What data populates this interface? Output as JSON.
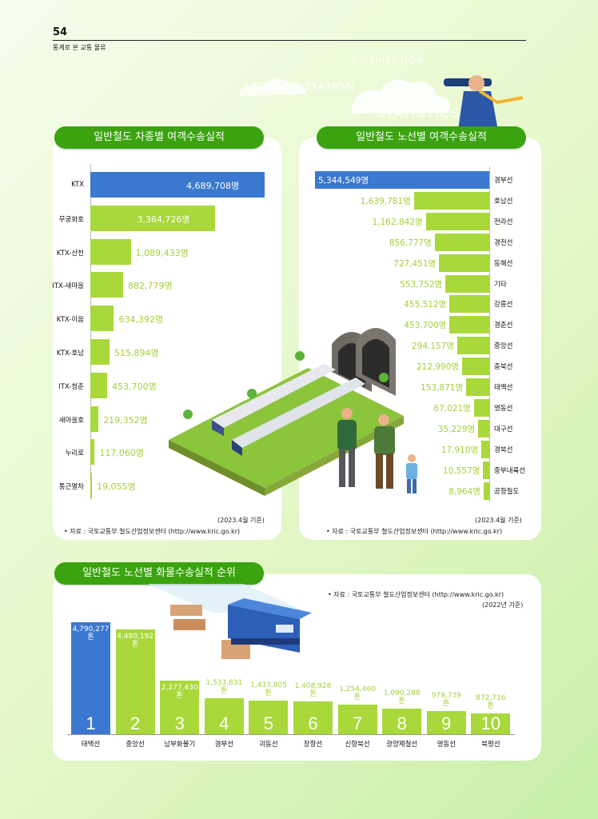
{
  "header": {
    "page_number": "54",
    "subtitle": "통계로 본 교통 물류",
    "deco_words": [
      "DISTRIBUTION",
      "TRANSPOTATION",
      "STATISTICS"
    ]
  },
  "colors": {
    "blue": "#3b78cf",
    "green": "#a8d83a",
    "green_text": "#a6cf3a",
    "pill": "#3aa30f"
  },
  "panel1": {
    "title": "일반철도 차종별 여객수송실적",
    "basis": "(2023.4월 기준)",
    "source": "• 자료 : 국토교통부 철도산업정보센터 (http://www.kric.go.kr)"
  },
  "panel2": {
    "title": "일반철도 노선별 여객수송실적",
    "basis": "(2023.4월 기준)",
    "source": "• 자료 : 국토교통부 철도산업정보센터 (http://www.kric.go.kr)"
  },
  "panel3": {
    "title": "일반철도 노선별 화물수송실적 순위",
    "source": "• 자료 : 국토교통부 철도산업정보센터 (http://www.kric.go.kr)",
    "basis": "(2022년 기준)"
  },
  "chart_data": [
    {
      "type": "bar",
      "orientation": "horizontal",
      "title": "일반철도 차종별 여객수송실적",
      "unit": "명",
      "categories": [
        "KTX",
        "무궁화호",
        "KTX-산천",
        "ITX-새마을",
        "KTX-이음",
        "KTX-호남",
        "ITX-청춘",
        "새마을호",
        "누리로",
        "통근열차"
      ],
      "values": [
        4689708,
        3364726,
        1089433,
        882779,
        634392,
        515894,
        453700,
        219352,
        117060,
        19055
      ],
      "value_labels": [
        "4,689,708",
        "3,364,726",
        "1,089,433",
        "882,779",
        "634,392",
        "515,894",
        "453,700",
        "219,352",
        "117,060",
        "19,055"
      ]
    },
    {
      "type": "bar",
      "orientation": "horizontal",
      "title": "일반철도 노선별 여객수송실적",
      "unit": "명",
      "categories": [
        "경부선",
        "호남선",
        "전라선",
        "경전선",
        "동해선",
        "기타",
        "강릉선",
        "경춘선",
        "중앙선",
        "충북선",
        "태백선",
        "영동선",
        "대구선",
        "경북선",
        "중부내륙선",
        "공항철도"
      ],
      "values": [
        5344549,
        1639781,
        1162842,
        856777,
        727451,
        553752,
        455512,
        453700,
        294157,
        212990,
        153871,
        67021,
        35229,
        17910,
        10557,
        8964
      ],
      "value_labels": [
        "5,344,549",
        "1,639,781",
        "1,162,842",
        "856,777",
        "727,451",
        "553,752",
        "455,512",
        "453,700",
        "294,157",
        "212,990",
        "153,871",
        "67,021",
        "35,229",
        "17,910",
        "10,557",
        "8,964"
      ]
    },
    {
      "type": "bar",
      "orientation": "vertical",
      "title": "일반철도 노선별 화물수송실적 순위",
      "unit": "톤",
      "categories": [
        "태백선",
        "중앙선",
        "남부화물기",
        "경부선",
        "괴동선",
        "장항선",
        "신항북선",
        "광양제철선",
        "영동선",
        "북평선"
      ],
      "ranks": [
        "1",
        "2",
        "3",
        "4",
        "5",
        "6",
        "7",
        "8",
        "9",
        "10"
      ],
      "values": [
        4790277,
        4480192,
        2277430,
        1533831,
        1433805,
        1408928,
        1254460,
        1090288,
        979739,
        872716
      ],
      "value_labels": [
        "4,790,277",
        "4,480,192",
        "2,277,430",
        "1,533,831",
        "1,433,805",
        "1,408,928",
        "1,254,460",
        "1,090,288",
        "979,739",
        "872,716"
      ]
    }
  ]
}
